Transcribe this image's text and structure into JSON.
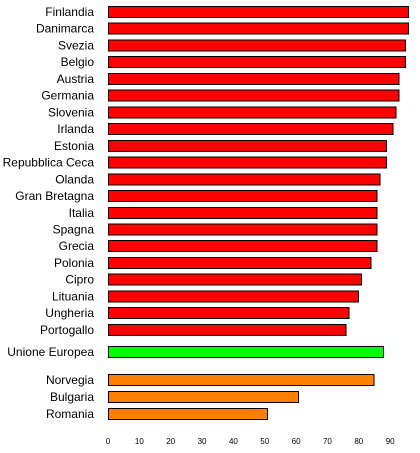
{
  "chart_data": {
    "type": "bar",
    "orientation": "horizontal",
    "title": "",
    "xlabel": "",
    "ylabel": "",
    "xlim": [
      0,
      95
    ],
    "ticks": [
      0,
      10,
      20,
      30,
      40,
      50,
      60,
      70,
      80,
      90
    ],
    "grid": false,
    "legend": "none",
    "colors": {
      "member": "#ff0000",
      "eu": "#00ff00",
      "other": "#ff8000",
      "outline": "#000000"
    },
    "bars": [
      {
        "label": "Finlandia",
        "value": 96,
        "group": "member"
      },
      {
        "label": "Danimarca",
        "value": 96,
        "group": "member"
      },
      {
        "label": "Svezia",
        "value": 95,
        "group": "member"
      },
      {
        "label": "Belgio",
        "value": 95,
        "group": "member"
      },
      {
        "label": "Austria",
        "value": 93,
        "group": "member"
      },
      {
        "label": "Germania",
        "value": 93,
        "group": "member"
      },
      {
        "label": "Slovenia",
        "value": 92,
        "group": "member"
      },
      {
        "label": "Irlanda",
        "value": 91,
        "group": "member"
      },
      {
        "label": "Estonia",
        "value": 89,
        "group": "member"
      },
      {
        "label": "Repubblica Ceca",
        "value": 89,
        "group": "member"
      },
      {
        "label": "Olanda",
        "value": 87,
        "group": "member"
      },
      {
        "label": "Gran Bretagna",
        "value": 86,
        "group": "member"
      },
      {
        "label": "Italia",
        "value": 86,
        "group": "member"
      },
      {
        "label": "Spagna",
        "value": 86,
        "group": "member"
      },
      {
        "label": "Grecia",
        "value": 86,
        "group": "member"
      },
      {
        "label": "Polonia",
        "value": 84,
        "group": "member"
      },
      {
        "label": "Cipro",
        "value": 81,
        "group": "member"
      },
      {
        "label": "Lituania",
        "value": 80,
        "group": "member"
      },
      {
        "label": "Ungheria",
        "value": 77,
        "group": "member"
      },
      {
        "label": "Portogallo",
        "value": 76,
        "group": "member"
      },
      {
        "label": "Unione Europea",
        "value": 88,
        "group": "eu"
      },
      {
        "label": "Norvegia",
        "value": 85,
        "group": "other"
      },
      {
        "label": "Bulgaria",
        "value": 61,
        "group": "other"
      },
      {
        "label": "Romania",
        "value": 51,
        "group": "other"
      }
    ]
  }
}
